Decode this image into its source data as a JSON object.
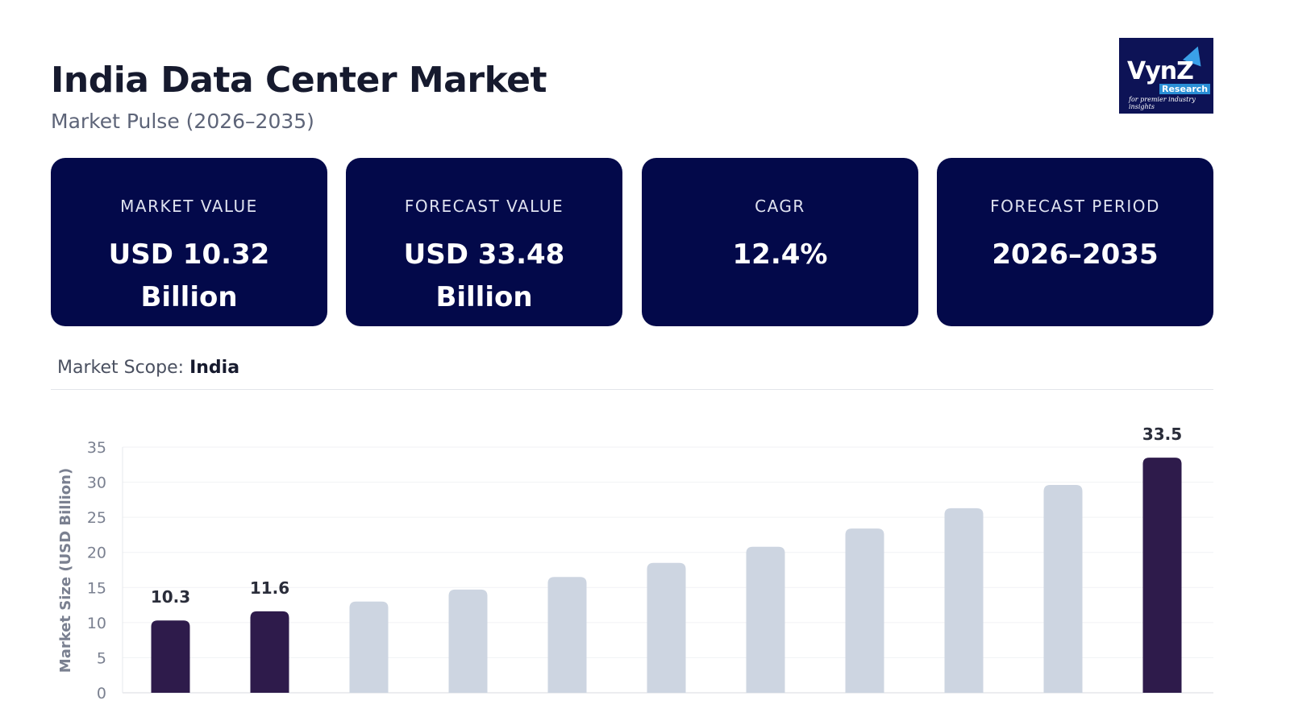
{
  "header": {
    "title": "India Data Center Market",
    "subtitle": "Market Pulse (2026–2035)"
  },
  "logo": {
    "text": "VynZ",
    "sub": "Research",
    "tagline": "for premier industry insights",
    "colors": {
      "bg": "#0d1356",
      "accent": "#2a8fd6"
    }
  },
  "cards": [
    {
      "label": "MARKET VALUE",
      "value": "USD 10.32 Billion"
    },
    {
      "label": "FORECAST VALUE",
      "value": "USD 33.48 Billion"
    },
    {
      "label": "CAGR",
      "value": "12.4%"
    },
    {
      "label": "FORECAST PERIOD",
      "value": "2026–2035"
    }
  ],
  "scope": {
    "label": "Market Scope:",
    "value": "India"
  },
  "chart_data": {
    "type": "bar",
    "ylabel": "Market Size (USD Billion)",
    "ylim": [
      0,
      35
    ],
    "yticks": [
      0,
      5,
      10,
      15,
      20,
      25,
      30,
      35
    ],
    "grid": true,
    "values": [
      10.3,
      11.6,
      13.0,
      14.7,
      16.5,
      18.5,
      20.8,
      23.4,
      26.3,
      29.6,
      33.5
    ],
    "data_labels": {
      "0": "10.3",
      "1": "11.6",
      "10": "33.5"
    },
    "highlight_indices": [
      0,
      1,
      10
    ],
    "colors": {
      "highlight": "#2e1b4b",
      "normal": "#cdd5e1"
    }
  }
}
